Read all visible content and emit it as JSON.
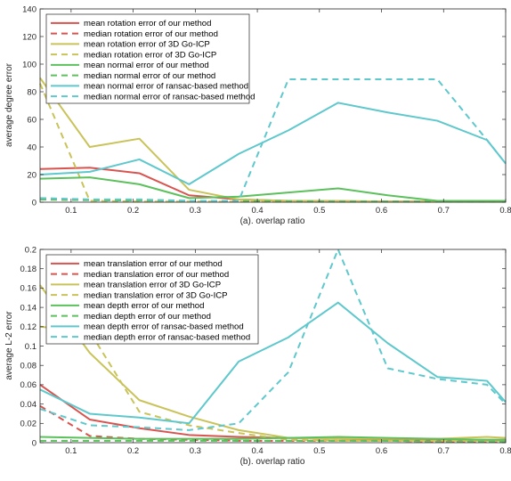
{
  "chart_data": [
    {
      "type": "line",
      "xlabel": "(a). overlap ratio",
      "ylabel": "average degree error",
      "xlim": [
        0.05,
        0.8
      ],
      "ylim": [
        0,
        140
      ],
      "xticks": [
        "0.1",
        "0.2",
        "0.3",
        "0.4",
        "0.5",
        "0.6",
        "0.7",
        "0.8"
      ],
      "yticks": [
        "0",
        "20",
        "40",
        "60",
        "80",
        "100",
        "120",
        "140"
      ],
      "grid": false,
      "legend": "top-left",
      "series": [
        {
          "name": "mean rotation error of our method",
          "color": "#d9534f",
          "dash": false,
          "x": [
            0.05,
            0.13,
            0.21,
            0.29,
            0.37,
            0.45,
            0.53,
            0.61,
            0.69,
            0.77,
            0.8
          ],
          "y": [
            24,
            25,
            21,
            5,
            2,
            1,
            0.8,
            0.6,
            0.5,
            0.4,
            0.4
          ]
        },
        {
          "name": "median rotation error of our method",
          "color": "#d9534f",
          "dash": true,
          "x": [
            0.05,
            0.13,
            0.21,
            0.29,
            0.37,
            0.45,
            0.53,
            0.61,
            0.69,
            0.77,
            0.8
          ],
          "y": [
            2,
            1.5,
            1.2,
            0.8,
            0.6,
            0.5,
            0.4,
            0.4,
            0.3,
            0.3,
            0.3
          ]
        },
        {
          "name": "mean rotation error of 3D Go-ICP",
          "color": "#c9c35a",
          "dash": false,
          "x": [
            0.05,
            0.13,
            0.21,
            0.29,
            0.37,
            0.45,
            0.53,
            0.61,
            0.69,
            0.77,
            0.8
          ],
          "y": [
            90,
            40,
            46,
            9,
            2,
            1,
            0.8,
            0.6,
            0.5,
            0.5,
            0.5
          ]
        },
        {
          "name": "median rotation error of 3D Go-ICP",
          "color": "#c9c35a",
          "dash": true,
          "x": [
            0.05,
            0.13,
            0.21,
            0.29,
            0.37,
            0.45,
            0.53,
            0.61,
            0.69,
            0.77,
            0.8
          ],
          "y": [
            86,
            1,
            0.5,
            0.5,
            0.4,
            0.4,
            0.3,
            0.3,
            0.3,
            0.3,
            0.3
          ]
        },
        {
          "name": "mean normal error of our method",
          "color": "#5cc05c",
          "dash": false,
          "x": [
            0.05,
            0.13,
            0.21,
            0.29,
            0.37,
            0.45,
            0.53,
            0.61,
            0.69,
            0.77,
            0.8
          ],
          "y": [
            17,
            18,
            13,
            3,
            4,
            7,
            10,
            5,
            1,
            1,
            1
          ]
        },
        {
          "name": "median normal error of our method",
          "color": "#5cc05c",
          "dash": true,
          "x": [
            0.05,
            0.13,
            0.21,
            0.29,
            0.37,
            0.45,
            0.53,
            0.61,
            0.69,
            0.77,
            0.8
          ],
          "y": [
            2,
            1.5,
            1.2,
            1,
            0.8,
            0.8,
            0.6,
            0.6,
            0.5,
            0.5,
            0.5
          ]
        },
        {
          "name": "mean normal error of ransac-based method",
          "color": "#5ec8cc",
          "dash": false,
          "x": [
            0.05,
            0.13,
            0.21,
            0.29,
            0.37,
            0.45,
            0.53,
            0.61,
            0.69,
            0.77,
            0.8
          ],
          "y": [
            20,
            22,
            31,
            13,
            35,
            52,
            72,
            65,
            59,
            45,
            28
          ]
        },
        {
          "name": "median normal error of ransac-based method",
          "color": "#5ec8cc",
          "dash": true,
          "x": [
            0.05,
            0.13,
            0.21,
            0.29,
            0.37,
            0.45,
            0.53,
            0.61,
            0.69,
            0.77,
            0.8
          ],
          "y": [
            3,
            2,
            2,
            1,
            1,
            89,
            89,
            89,
            89,
            45,
            28
          ]
        }
      ]
    },
    {
      "type": "line",
      "xlabel": "(b). overlap ratio",
      "ylabel": "average L-2 error",
      "xlim": [
        0.05,
        0.8
      ],
      "ylim": [
        0,
        0.2
      ],
      "xticks": [
        "0.1",
        "0.2",
        "0.3",
        "0.4",
        "0.5",
        "0.6",
        "0.7",
        "0.8"
      ],
      "yticks": [
        "0",
        "0.02",
        "0.04",
        "0.06",
        "0.08",
        "0.1",
        "0.12",
        "0.14",
        "0.16",
        "0.18",
        "0.2"
      ],
      "grid": false,
      "legend": "top-left",
      "series": [
        {
          "name": "mean translation error of our method",
          "color": "#d9534f",
          "dash": false,
          "x": [
            0.05,
            0.13,
            0.21,
            0.29,
            0.37,
            0.45,
            0.53,
            0.61,
            0.69,
            0.77,
            0.8
          ],
          "y": [
            0.06,
            0.024,
            0.015,
            0.008,
            0.006,
            0.005,
            0.004,
            0.003,
            0.003,
            0.003,
            0.003
          ]
        },
        {
          "name": "median translation error of our method",
          "color": "#d9534f",
          "dash": true,
          "x": [
            0.05,
            0.13,
            0.21,
            0.29,
            0.37,
            0.45,
            0.53,
            0.61,
            0.69,
            0.77,
            0.8
          ],
          "y": [
            0.038,
            0.007,
            0.004,
            0.003,
            0.002,
            0.002,
            0.002,
            0.002,
            0.001,
            0.001,
            0.001
          ]
        },
        {
          "name": "mean translation error of 3D Go-ICP",
          "color": "#c9c35a",
          "dash": false,
          "x": [
            0.05,
            0.13,
            0.21,
            0.29,
            0.37,
            0.45,
            0.53,
            0.61,
            0.69,
            0.77,
            0.8
          ],
          "y": [
            0.163,
            0.093,
            0.044,
            0.027,
            0.013,
            0.005,
            0.004,
            0.004,
            0.004,
            0.006,
            0.005
          ]
        },
        {
          "name": "median translation error of 3D Go-ICP",
          "color": "#c9c35a",
          "dash": true,
          "x": [
            0.05,
            0.13,
            0.21,
            0.29,
            0.37,
            0.45,
            0.53,
            0.61,
            0.69,
            0.77,
            0.8
          ],
          "y": [
            0.12,
            0.115,
            0.032,
            0.018,
            0.01,
            0.003,
            0.002,
            0.002,
            0.002,
            0.002,
            0.002
          ]
        },
        {
          "name": "mean depth error of our method",
          "color": "#5cc05c",
          "dash": false,
          "x": [
            0.05,
            0.13,
            0.21,
            0.29,
            0.37,
            0.45,
            0.53,
            0.61,
            0.69,
            0.77,
            0.8
          ],
          "y": [
            0.006,
            0.005,
            0.004,
            0.004,
            0.004,
            0.005,
            0.006,
            0.005,
            0.004,
            0.003,
            0.003
          ]
        },
        {
          "name": "median depth error of our method",
          "color": "#5cc05c",
          "dash": true,
          "x": [
            0.05,
            0.13,
            0.21,
            0.29,
            0.37,
            0.45,
            0.53,
            0.61,
            0.69,
            0.77,
            0.8
          ],
          "y": [
            0.002,
            0.002,
            0.002,
            0.002,
            0.002,
            0.002,
            0.002,
            0.002,
            0.001,
            0.001,
            0.001
          ]
        },
        {
          "name": "mean depth error of ransac-based method",
          "color": "#5ec8cc",
          "dash": false,
          "x": [
            0.05,
            0.13,
            0.21,
            0.29,
            0.37,
            0.45,
            0.53,
            0.61,
            0.69,
            0.77,
            0.8
          ],
          "y": [
            0.055,
            0.03,
            0.026,
            0.02,
            0.084,
            0.109,
            0.145,
            0.103,
            0.068,
            0.064,
            0.042
          ]
        },
        {
          "name": "median depth error of ransac-based method",
          "color": "#5ec8cc",
          "dash": true,
          "x": [
            0.05,
            0.13,
            0.21,
            0.29,
            0.37,
            0.45,
            0.53,
            0.61,
            0.69,
            0.77,
            0.8
          ],
          "y": [
            0.035,
            0.018,
            0.016,
            0.013,
            0.02,
            0.073,
            0.2,
            0.077,
            0.066,
            0.06,
            0.04
          ]
        }
      ]
    }
  ]
}
